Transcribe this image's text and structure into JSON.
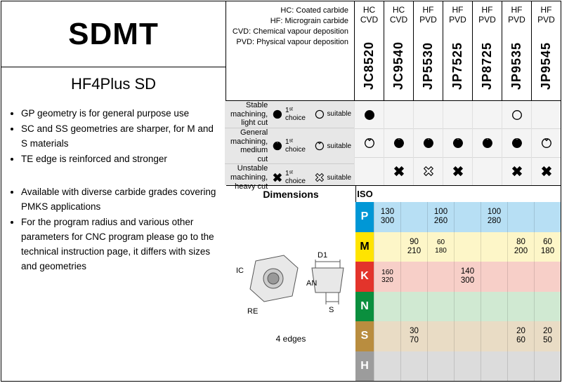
{
  "title": {
    "main": "SDMT",
    "sub": "HF4Plus SD"
  },
  "legend": {
    "lines": [
      "HC: Coated carbide",
      "HF: Micrograin carbide",
      "CVD: Chemical vapour deposition",
      "PVD: Physical vapour deposition"
    ]
  },
  "grades": [
    {
      "type": "HC",
      "dep": "CVD",
      "code": "JC8520"
    },
    {
      "type": "HC",
      "dep": "CVD",
      "code": "JC9540"
    },
    {
      "type": "HF",
      "dep": "PVD",
      "code": "JP5530"
    },
    {
      "type": "HF",
      "dep": "PVD",
      "code": "JP7525"
    },
    {
      "type": "HF",
      "dep": "PVD",
      "code": "JP8725"
    },
    {
      "type": "HF",
      "dep": "PVD",
      "code": "JP9535"
    },
    {
      "type": "HF",
      "dep": "PVD",
      "code": "JP9545"
    }
  ],
  "bullets": [
    "GP geometry is for general purpose use",
    "SC and SS geometries are sharper, for M and S materials",
    "TE edge is reinforced and stronger",
    "Available with diverse carbide grades covering PMKS applications",
    "For the program radius and various other parameters for CNC program please go to the technical instruction page, it differs with sizes and geometries"
  ],
  "selection": {
    "rows": [
      {
        "label1": "Stable machining,",
        "label2": "light cut",
        "icon": "solid"
      },
      {
        "label1": "General machining,",
        "label2": "medium cut",
        "icon": "notch"
      },
      {
        "label1": "Unstable machining,",
        "label2": "heavy cut",
        "icon": "cross"
      }
    ],
    "legend_first": "1ˢᵗ choice",
    "legend_suit": "suitable",
    "grid": [
      [
        "solid-f",
        "",
        "",
        "",
        "",
        "solid-o",
        ""
      ],
      [
        "notch-o",
        "notch-f",
        "notch-f",
        "notch-f",
        "notch-f",
        "notch-f",
        "notch-o"
      ],
      [
        "",
        "cross-f",
        "cross-o",
        "cross-f",
        "",
        "cross-f",
        "cross-f"
      ]
    ]
  },
  "dimensions": {
    "header": "Dimensions",
    "edges": "4 edges",
    "labels": [
      "IC",
      "RE",
      "D1",
      "AN",
      "S"
    ]
  },
  "iso": {
    "header": "ISO",
    "rows": [
      {
        "k": "P",
        "bg": "#b7dff4",
        "lbl": "#0097d6",
        "cells": [
          [
            "130",
            "300"
          ],
          [],
          [
            "100",
            "260"
          ],
          [],
          [
            "100",
            "280"
          ],
          [],
          []
        ]
      },
      {
        "k": "M",
        "bg": "#fdf6c8",
        "lbl": "#ffe400",
        "cells": [
          [],
          [
            "90",
            "210"
          ],
          [
            "60",
            "180",
            "sm"
          ],
          [],
          [],
          [
            "80",
            "200"
          ],
          [
            "60",
            "180"
          ]
        ]
      },
      {
        "k": "K",
        "bg": "#f7cfc8",
        "lbl": "#e3342b",
        "cells": [
          [
            "160",
            "320",
            "sm"
          ],
          [],
          [],
          [
            "140",
            "300"
          ],
          [],
          [],
          []
        ]
      },
      {
        "k": "N",
        "bg": "#d0e9d2",
        "lbl": "#0a8f3e",
        "cells": [
          [],
          [],
          [],
          [],
          [],
          [],
          []
        ]
      },
      {
        "k": "S",
        "bg": "#e9dcc5",
        "lbl": "#b98d3f",
        "cells": [
          [],
          [
            "30",
            "70"
          ],
          [],
          [],
          [],
          [
            "20",
            "60"
          ],
          [
            "20",
            "50"
          ]
        ]
      },
      {
        "k": "H",
        "bg": "#dcdcdc",
        "lbl": "#9c9c9c",
        "cells": [
          [],
          [],
          [],
          [],
          [],
          [],
          []
        ]
      }
    ]
  },
  "colors": {
    "border": "#000",
    "grayBg": "#e7e7e7"
  }
}
